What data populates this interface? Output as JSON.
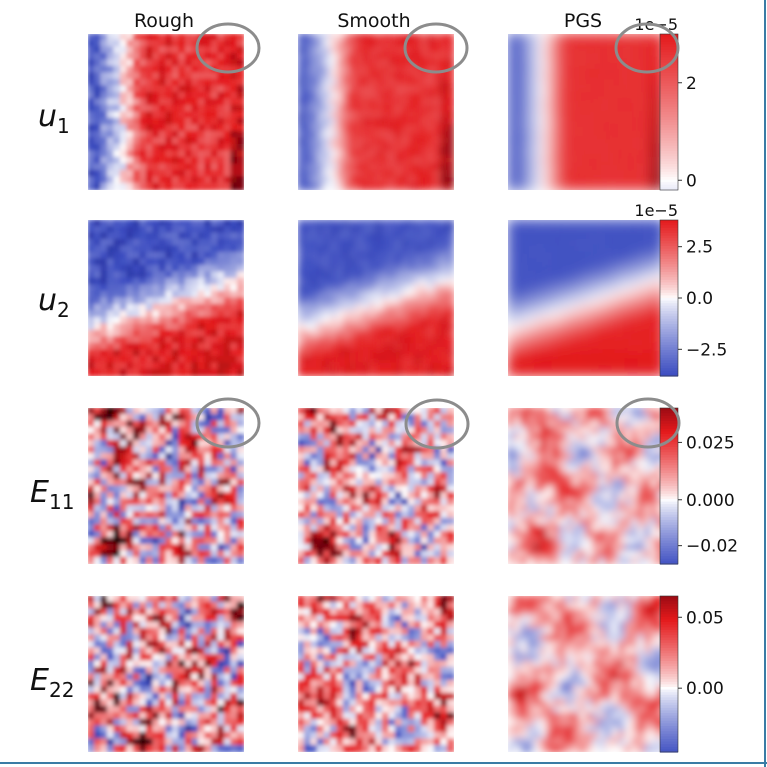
{
  "figure": {
    "columns": [
      "Rough",
      "Smooth",
      "PGS"
    ],
    "row_labels": [
      {
        "base": "u",
        "sub": "1"
      },
      {
        "base": "u",
        "sub": "2"
      },
      {
        "base": "E",
        "sub": "11"
      },
      {
        "base": "E",
        "sub": "22"
      }
    ],
    "colormap": {
      "low": "#3b4cc0",
      "mid": "#ffffff",
      "high": "#e41a1c",
      "dark_low": "#08086b",
      "dark_high": "#67000d"
    },
    "highlight_color": "#8c8c8c",
    "highlighted_rows": [
      "u1",
      "E11"
    ]
  },
  "chart_data": [
    {
      "type": "heatmap",
      "row": "u1",
      "panels": [
        "Rough",
        "Smooth",
        "PGS"
      ],
      "colorbar": {
        "exponent": "1e−5",
        "ticks": [
          "0",
          "2"
        ],
        "tick_values": [
          0,
          2
        ],
        "range": [
          -0.2,
          3.0
        ]
      },
      "field_description": "low on left edge, high across right",
      "smoothness": [
        0.25,
        0.5,
        0.9
      ]
    },
    {
      "type": "heatmap",
      "row": "u2",
      "panels": [
        "Rough",
        "Smooth",
        "PGS"
      ],
      "colorbar": {
        "exponent": "1e−5",
        "ticks": [
          "2.5",
          "0.0",
          "−2.5"
        ],
        "tick_values": [
          2.5,
          0.0,
          -2.5
        ],
        "range": [
          -3.8,
          3.8
        ]
      },
      "smoothness": [
        0.3,
        0.55,
        0.9
      ]
    },
    {
      "type": "heatmap",
      "row": "E11",
      "panels": [
        "Rough",
        "Smooth",
        "PGS"
      ],
      "colorbar": {
        "exponent": "",
        "ticks": [
          "0.025",
          "0.000",
          "−0.02"
        ],
        "tick_values": [
          0.025,
          0.0,
          -0.02
        ],
        "range": [
          -0.028,
          0.04
        ]
      },
      "smoothness": [
        0.1,
        0.25,
        0.55
      ]
    },
    {
      "type": "heatmap",
      "row": "E22",
      "panels": [
        "Rough",
        "Smooth",
        "PGS"
      ],
      "colorbar": {
        "exponent": "",
        "ticks": [
          "0.05",
          "0.00"
        ],
        "tick_values": [
          0.05,
          0.0
        ],
        "range": [
          -0.045,
          0.065
        ]
      },
      "smoothness": [
        0.1,
        0.3,
        0.55
      ]
    }
  ]
}
